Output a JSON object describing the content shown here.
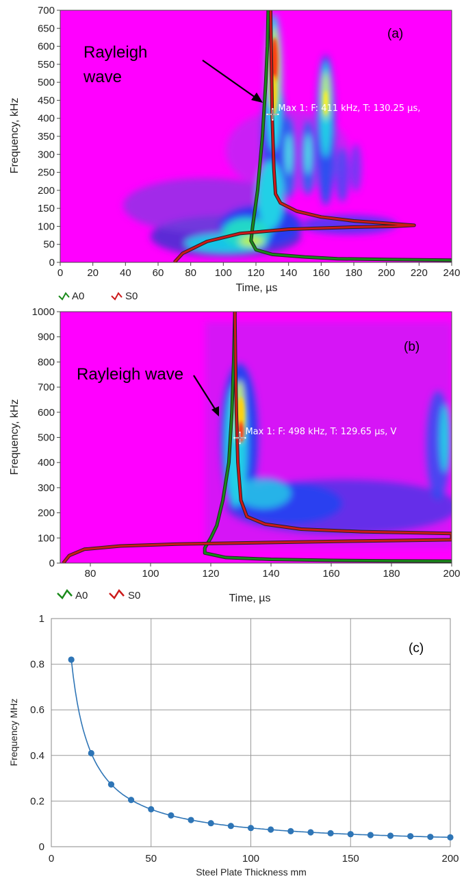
{
  "chart_data": [
    {
      "panel": "(a)",
      "type": "heatmap",
      "xlabel": "Time, µs",
      "ylabel": "Frequency, kHz",
      "xlim": [
        0,
        240
      ],
      "ylim": [
        0,
        700
      ],
      "x_ticks": [
        "0",
        "20",
        "40",
        "60",
        "80",
        "100",
        "120",
        "140",
        "160",
        "180",
        "200",
        "220",
        "240"
      ],
      "y_ticks": [
        "0",
        "50",
        "100",
        "150",
        "200",
        "250",
        "300",
        "350",
        "400",
        "450",
        "500",
        "550",
        "600",
        "650",
        "700"
      ],
      "annotation": "Rayleigh wave",
      "annotation_lines": [
        "Rayleigh",
        "wave"
      ],
      "marker_label": "Max 1: F: 411 kHz, T: 130.25 µs,",
      "marker": {
        "time": 130.25,
        "freq": 411
      },
      "legend": [
        "A0",
        "S0"
      ],
      "colors": {
        "A0": "#1a8a1a",
        "S0": "#cc1a1a",
        "background": "#ff00ff"
      },
      "series": [
        {
          "name": "A0",
          "points": [
            [
              240,
              6
            ],
            [
              200,
              8
            ],
            [
              170,
              10
            ],
            [
              150,
              15
            ],
            [
              130,
              22
            ],
            [
              120,
              35
            ],
            [
              117,
              60
            ],
            [
              118,
              100
            ],
            [
              121,
              200
            ],
            [
              124,
              350
            ],
            [
              126,
              500
            ],
            [
              127,
              600
            ],
            [
              127.5,
              700
            ]
          ]
        },
        {
          "name": "S0",
          "points": [
            [
              70,
              0
            ],
            [
              75,
              25
            ],
            [
              90,
              58
            ],
            [
              110,
              80
            ],
            [
              140,
              92
            ],
            [
              180,
              98
            ],
            [
              205,
              100
            ],
            [
              217,
              103
            ],
            [
              205,
              107
            ],
            [
              180,
              115
            ],
            [
              160,
              126
            ],
            [
              145,
              142
            ],
            [
              135,
              165
            ],
            [
              132,
              190
            ],
            [
              131,
              260
            ],
            [
              130,
              400
            ],
            [
              129.5,
              550
            ],
            [
              129,
              700
            ]
          ]
        }
      ]
    },
    {
      "panel": "(b)",
      "type": "heatmap",
      "xlabel": "Time, µs",
      "ylabel": "Frequency, kHz",
      "xlim": [
        70,
        200
      ],
      "ylim": [
        0,
        1000
      ],
      "x_ticks": [
        "80",
        "100",
        "120",
        "140",
        "160",
        "180",
        "200"
      ],
      "y_ticks": [
        "0",
        "100",
        "200",
        "300",
        "400",
        "500",
        "600",
        "700",
        "800",
        "900",
        "1000"
      ],
      "annotation": "Rayleigh wave",
      "marker_label": "Max 1: F: 498 kHz, T: 129.65 µs, V",
      "marker": {
        "time": 129.65,
        "freq": 498
      },
      "legend": [
        "A0",
        "S0"
      ],
      "colors": {
        "A0": "#1a8a1a",
        "S0": "#cc1a1a",
        "background": "#ff00ff"
      },
      "series": [
        {
          "name": "A0",
          "points": [
            [
              200,
              8
            ],
            [
              180,
              9
            ],
            [
              160,
              11
            ],
            [
              140,
              15
            ],
            [
              125,
              22
            ],
            [
              118,
              40
            ],
            [
              118,
              60
            ],
            [
              120,
              100
            ],
            [
              122,
              150
            ],
            [
              124,
              250
            ],
            [
              126,
              400
            ],
            [
              127,
              600
            ],
            [
              127.6,
              800
            ],
            [
              128,
              1000
            ]
          ]
        },
        {
          "name": "S0",
          "points": [
            [
              71,
              0
            ],
            [
              73,
              30
            ],
            [
              78,
              55
            ],
            [
              90,
              68
            ],
            [
              110,
              76
            ],
            [
              140,
              82
            ],
            [
              170,
              88
            ],
            [
              200,
              93
            ],
            [
              200,
              118
            ],
            [
              170,
              125
            ],
            [
              150,
              135
            ],
            [
              138,
              155
            ],
            [
              132,
              185
            ],
            [
              130,
              250
            ],
            [
              129,
              400
            ],
            [
              128.5,
              600
            ],
            [
              128.2,
              800
            ],
            [
              128,
              1000
            ]
          ]
        }
      ]
    },
    {
      "panel": "(c)",
      "type": "line",
      "xlabel": "Steel Plate Thickness  mm",
      "ylabel": "Frequency  MHz",
      "xlim": [
        0,
        200
      ],
      "ylim": [
        0,
        1
      ],
      "x_ticks": [
        "0",
        "50",
        "100",
        "150",
        "200"
      ],
      "y_ticks": [
        "0",
        "0.2",
        "0.4",
        "0.6",
        "0.8",
        "1"
      ],
      "grid": true,
      "colors": {
        "line": "#2e75b6"
      },
      "x": [
        10,
        20,
        30,
        40,
        50,
        60,
        70,
        80,
        90,
        100,
        110,
        120,
        130,
        140,
        150,
        160,
        170,
        180,
        190,
        200
      ],
      "y": [
        0.82,
        0.41,
        0.273,
        0.205,
        0.164,
        0.137,
        0.117,
        0.103,
        0.091,
        0.082,
        0.075,
        0.068,
        0.063,
        0.059,
        0.055,
        0.051,
        0.048,
        0.046,
        0.043,
        0.041
      ]
    }
  ]
}
